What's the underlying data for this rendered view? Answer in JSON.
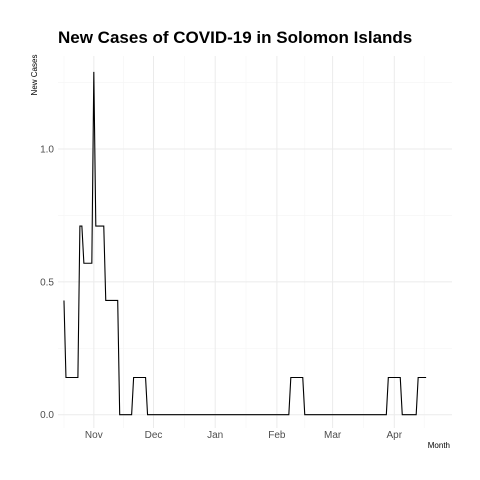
{
  "chart_data": {
    "type": "line",
    "title": "New Cases of COVID-19 in Solomon Islands",
    "xlabel": "Month",
    "ylabel": "New Cases",
    "x_tick_labels": [
      {
        "label": "Nov",
        "date": "2020-11-01"
      },
      {
        "label": "Dec",
        "date": "2020-12-01"
      },
      {
        "label": "Jan",
        "date": "2021-01-01"
      },
      {
        "label": "Feb",
        "date": "2021-02-01"
      },
      {
        "label": "Mar",
        "date": "2021-03-01"
      },
      {
        "label": "Apr",
        "date": "2021-04-01"
      }
    ],
    "y_ticks": [
      0.0,
      0.5,
      1.0
    ],
    "y_tick_labels": [
      "0.0",
      "0.5",
      "1.0"
    ],
    "xlim": [
      "2020-10-14",
      "2021-04-30"
    ],
    "ylim": [
      -0.05,
      1.35
    ],
    "grid": true,
    "series": [
      {
        "points": [
          {
            "x": "2020-10-17",
            "y": 0.43
          },
          {
            "x": "2020-10-18",
            "y": 0.14
          },
          {
            "x": "2020-10-24",
            "y": 0.14
          },
          {
            "x": "2020-10-25",
            "y": 0.71
          },
          {
            "x": "2020-10-26",
            "y": 0.71
          },
          {
            "x": "2020-10-27",
            "y": 0.57
          },
          {
            "x": "2020-10-31",
            "y": 0.57
          },
          {
            "x": "2020-11-01",
            "y": 1.29
          },
          {
            "x": "2020-11-02",
            "y": 0.71
          },
          {
            "x": "2020-11-06",
            "y": 0.71
          },
          {
            "x": "2020-11-07",
            "y": 0.43
          },
          {
            "x": "2020-11-13",
            "y": 0.43
          },
          {
            "x": "2020-11-14",
            "y": 0.0
          },
          {
            "x": "2020-11-20",
            "y": 0.0
          },
          {
            "x": "2020-11-21",
            "y": 0.14
          },
          {
            "x": "2020-11-27",
            "y": 0.14
          },
          {
            "x": "2020-11-28",
            "y": 0.0
          },
          {
            "x": "2021-02-07",
            "y": 0.0
          },
          {
            "x": "2021-02-08",
            "y": 0.14
          },
          {
            "x": "2021-02-14",
            "y": 0.14
          },
          {
            "x": "2021-02-15",
            "y": 0.0
          },
          {
            "x": "2021-03-28",
            "y": 0.0
          },
          {
            "x": "2021-03-29",
            "y": 0.14
          },
          {
            "x": "2021-04-04",
            "y": 0.14
          },
          {
            "x": "2021-04-05",
            "y": 0.0
          },
          {
            "x": "2021-04-12",
            "y": 0.0
          },
          {
            "x": "2021-04-13",
            "y": 0.14
          },
          {
            "x": "2021-04-17",
            "y": 0.14
          }
        ]
      }
    ]
  }
}
